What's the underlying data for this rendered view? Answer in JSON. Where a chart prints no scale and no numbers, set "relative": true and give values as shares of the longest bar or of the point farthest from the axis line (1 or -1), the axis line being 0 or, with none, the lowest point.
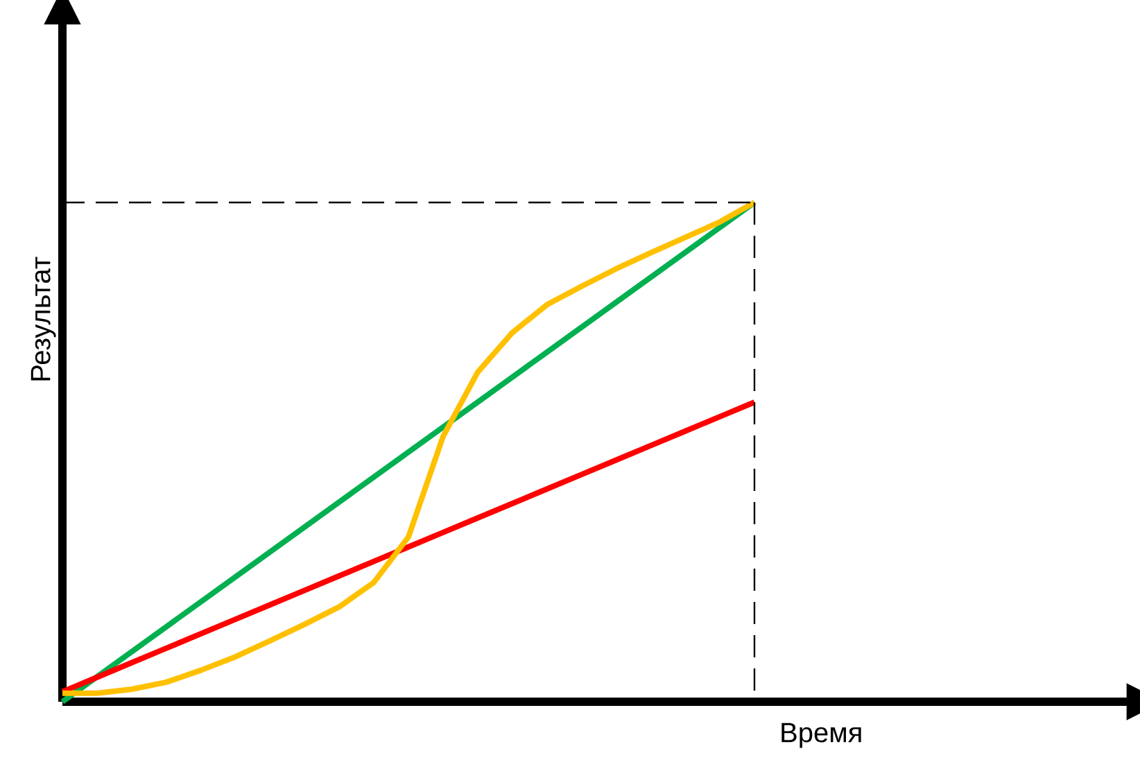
{
  "chart_data": {
    "type": "line",
    "relative": true,
    "xlabel": "Время",
    "ylabel": "Результат",
    "categories": [
      null,
      null,
      null,
      null,
      null,
      null,
      null,
      null,
      null,
      null,
      null,
      null,
      null,
      null,
      null,
      null,
      null,
      null,
      null,
      null,
      null
    ],
    "series": [
      {
        "color": "#00b050",
        "values": [
          0,
          0.05,
          0.1,
          0.15,
          0.2,
          0.25,
          0.3,
          0.35,
          0.4,
          0.45,
          0.5,
          0.55,
          0.6,
          0.65,
          0.7,
          0.75,
          0.8,
          0.85,
          0.9,
          0.95,
          1
        ]
      },
      {
        "color": "#ff0000",
        "values": [
          0.02,
          0.049,
          0.078,
          0.107,
          0.136,
          0.165,
          0.194,
          0.223,
          0.252,
          0.281,
          0.31,
          0.339,
          0.368,
          0.397,
          0.426,
          0.455,
          0.484,
          0.513,
          0.542,
          0.571,
          0.6
        ]
      },
      {
        "color": "#ffc000",
        "values": [
          0.017,
          0.017,
          0.025,
          0.039,
          0.063,
          0.09,
          0.122,
          0.155,
          0.19,
          0.239,
          0.33,
          0.531,
          0.66,
          0.739,
          0.795,
          0.832,
          0.867,
          0.899,
          0.93,
          0.961,
          1
        ]
      }
    ],
    "ref_lines": [
      {
        "axis": "y",
        "value": 1,
        "line_style": "dashed"
      }
    ],
    "marker": "none",
    "line_style": "solid"
  }
}
